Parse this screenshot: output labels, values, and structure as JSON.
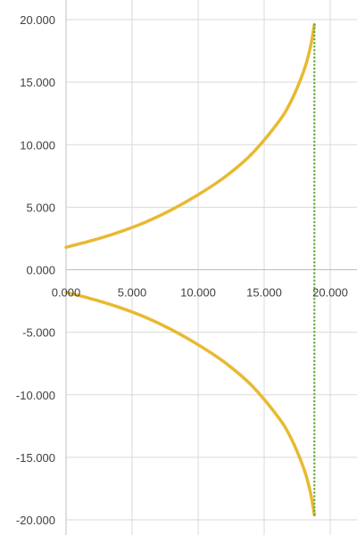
{
  "chart_data": {
    "type": "scatter",
    "title": "",
    "xlabel": "",
    "ylabel": "",
    "xlim": [
      0,
      20
    ],
    "ylim": [
      -20,
      20
    ],
    "x_ticks": [
      "0.000",
      "5.000",
      "10.000",
      "15.000",
      "20.000"
    ],
    "y_ticks": [
      "20.000",
      "15.000",
      "10.000",
      "5.000",
      "0.000",
      "-5.000",
      "-10.000",
      "-15.000",
      "-20.000"
    ],
    "grid": true,
    "legend": "none",
    "series": [
      {
        "color": "#e8b931",
        "style": "solid",
        "x": [
          0,
          2,
          4,
          6,
          8,
          10,
          12,
          14,
          16,
          17,
          18,
          18.5,
          18.8
        ],
        "y": [
          1.8,
          2.35,
          3.0,
          3.8,
          4.8,
          6.0,
          7.4,
          9.2,
          11.7,
          13.4,
          15.9,
          17.8,
          19.6
        ]
      },
      {
        "color": "#e8b931",
        "style": "solid",
        "x": [
          0,
          2,
          4,
          6,
          8,
          10,
          12,
          14,
          16,
          17,
          18,
          18.5,
          18.8
        ],
        "y": [
          -1.8,
          -2.35,
          -3.0,
          -3.8,
          -4.8,
          -6.0,
          -7.4,
          -9.2,
          -11.7,
          -13.4,
          -15.9,
          -17.8,
          -19.6
        ]
      },
      {
        "color": "#70ad47",
        "style": "dotted",
        "x": [
          18.8,
          18.8
        ],
        "y": [
          19.6,
          -19.6
        ]
      }
    ]
  }
}
